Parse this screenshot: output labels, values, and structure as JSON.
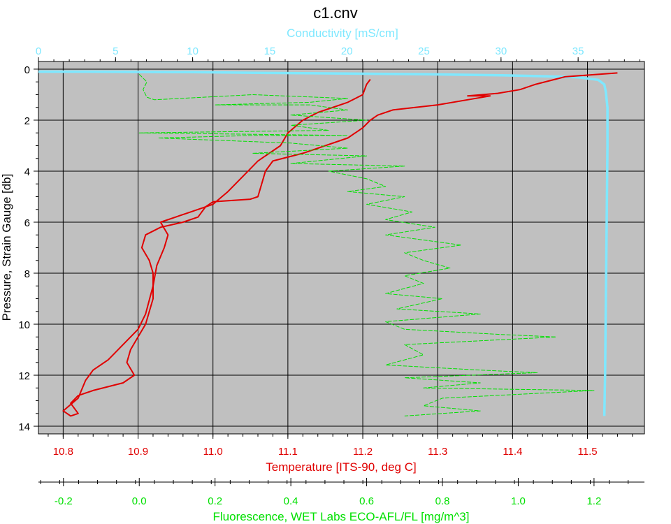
{
  "chart_data": {
    "type": "line",
    "title": "c1.cnv",
    "background_color": "#c0c0c0",
    "grid": true,
    "y_axis": {
      "label": "Pressure, Strain Gauge [db]",
      "range": [
        14.3,
        -0.3
      ],
      "inverted": true,
      "ticks": [
        "0",
        "2",
        "4",
        "6",
        "8",
        "10",
        "12",
        "14"
      ],
      "color": "#000000"
    },
    "axes": {
      "conductivity": {
        "label": "Conductivity [mS/cm]",
        "position": "top",
        "range": [
          0,
          39.3
        ],
        "ticks": [
          "0",
          "5",
          "10",
          "15",
          "20",
          "25",
          "30",
          "35"
        ],
        "color": "#7fe8ff"
      },
      "temperature": {
        "label": "Temperature [ITS-90, deg C]",
        "position": "bottom",
        "range": [
          10.767,
          11.576
        ],
        "ticks": [
          "10.8",
          "10.9",
          "11.0",
          "11.1",
          "11.2",
          "11.3",
          "11.4",
          "11.5"
        ],
        "color": "#e00000"
      },
      "fluorescence": {
        "label": "Fluorescence, WET Labs ECO-AFL/FL [mg/m^3]",
        "position": "bottom",
        "range": [
          -0.266,
          1.333
        ],
        "ticks": [
          "-0.2",
          "0.0",
          "0.2",
          "0.4",
          "0.6",
          "0.8",
          "1.0",
          "1.2"
        ],
        "color": "#00e000"
      }
    },
    "series": [
      {
        "axis": "conductivity",
        "color": "#7fe8ff",
        "points": [
          [
            0,
            0.1
          ],
          [
            3,
            0.1
          ],
          [
            10,
            0.12
          ],
          [
            15,
            0.15
          ],
          [
            20,
            0.17
          ],
          [
            25,
            0.2
          ],
          [
            30,
            0.24
          ],
          [
            33,
            0.28
          ],
          [
            35,
            0.32
          ],
          [
            36.3,
            0.42
          ],
          [
            36.7,
            0.6
          ],
          [
            36.8,
            0.9
          ],
          [
            36.9,
            1.5
          ],
          [
            36.9,
            3
          ],
          [
            36.85,
            6
          ],
          [
            36.8,
            9
          ],
          [
            36.75,
            12
          ],
          [
            36.7,
            13.6
          ]
        ]
      },
      {
        "axis": "temperature",
        "color": "#e00000",
        "points": [
          [
            11.54,
            0.15
          ],
          [
            11.47,
            0.3
          ],
          [
            11.45,
            0.45
          ],
          [
            11.43,
            0.6
          ],
          [
            11.41,
            0.8
          ],
          [
            11.38,
            0.95
          ],
          [
            11.34,
            1.05
          ],
          [
            11.37,
            1.05
          ],
          [
            11.3,
            1.4
          ],
          [
            11.24,
            1.6
          ],
          [
            11.22,
            1.8
          ],
          [
            11.21,
            2
          ],
          [
            11.2,
            2.3
          ],
          [
            11.18,
            2.7
          ],
          [
            11.12,
            3.3
          ],
          [
            11.08,
            3.6
          ],
          [
            11.07,
            4
          ],
          [
            11.065,
            4.5
          ],
          [
            11.06,
            5
          ],
          [
            11.05,
            5.1
          ],
          [
            11.0,
            5.2
          ],
          [
            10.99,
            5.4
          ],
          [
            10.98,
            5.8
          ],
          [
            10.96,
            6
          ],
          [
            10.93,
            6.2
          ],
          [
            10.91,
            6.5
          ],
          [
            10.905,
            7
          ],
          [
            10.915,
            7.5
          ],
          [
            10.92,
            8
          ],
          [
            10.92,
            9
          ],
          [
            10.91,
            10
          ],
          [
            10.9,
            10.5
          ],
          [
            10.89,
            11
          ],
          [
            10.885,
            11.5
          ],
          [
            10.895,
            12
          ],
          [
            10.88,
            12.3
          ],
          [
            10.84,
            12.6
          ],
          [
            10.82,
            12.8
          ],
          [
            10.81,
            13.1
          ],
          [
            10.82,
            13.5
          ],
          [
            10.81,
            13.6
          ],
          [
            10.8,
            13.4
          ],
          [
            10.82,
            12.9
          ],
          [
            10.83,
            12.2
          ],
          [
            10.84,
            11.8
          ],
          [
            10.86,
            11.4
          ],
          [
            10.88,
            10.8
          ],
          [
            10.9,
            10.2
          ],
          [
            10.91,
            9.6
          ],
          [
            10.92,
            8.5
          ],
          [
            10.925,
            7.7
          ],
          [
            10.935,
            7
          ],
          [
            10.94,
            6.5
          ],
          [
            10.93,
            6
          ],
          [
            10.97,
            5.6
          ],
          [
            11.0,
            5.3
          ],
          [
            11.02,
            4.8
          ],
          [
            11.04,
            4.2
          ],
          [
            11.06,
            3.6
          ],
          [
            11.09,
            3
          ],
          [
            11.1,
            2.5
          ],
          [
            11.12,
            2
          ],
          [
            11.14,
            1.7
          ],
          [
            11.18,
            1.3
          ],
          [
            11.2,
            1.0
          ],
          [
            11.205,
            0.6
          ],
          [
            11.21,
            0.4
          ]
        ]
      },
      {
        "axis": "fluorescence",
        "color": "#00e000",
        "points": [
          [
            0.0,
            0.2
          ],
          [
            0.02,
            0.5
          ],
          [
            0.01,
            0.8
          ],
          [
            0.02,
            1.1
          ],
          [
            0.04,
            1.2
          ],
          [
            0.3,
            1.0
          ],
          [
            0.55,
            1.15
          ],
          [
            0.45,
            1.3
          ],
          [
            0.2,
            1.4
          ],
          [
            0.45,
            1.4
          ],
          [
            0.55,
            1.6
          ],
          [
            0.4,
            1.8
          ],
          [
            0.6,
            2
          ],
          [
            0.4,
            2.2
          ],
          [
            0.5,
            2.4
          ],
          [
            0.0,
            2.5
          ],
          [
            0.55,
            2.6
          ],
          [
            0.3,
            2.6
          ],
          [
            0.05,
            2.7
          ],
          [
            0.4,
            2.9
          ],
          [
            0.55,
            3.1
          ],
          [
            0.3,
            3.3
          ],
          [
            0.6,
            3.4
          ],
          [
            0.4,
            3.7
          ],
          [
            0.7,
            3.8
          ],
          [
            0.5,
            4
          ],
          [
            0.6,
            4.3
          ],
          [
            0.65,
            4.6
          ],
          [
            0.55,
            4.8
          ],
          [
            0.7,
            5
          ],
          [
            0.6,
            5.3
          ],
          [
            0.72,
            5.6
          ],
          [
            0.65,
            5.9
          ],
          [
            0.78,
            6.2
          ],
          [
            0.65,
            6.5
          ],
          [
            0.85,
            6.9
          ],
          [
            0.7,
            7.2
          ],
          [
            0.75,
            7.5
          ],
          [
            0.82,
            7.8
          ],
          [
            0.7,
            8.1
          ],
          [
            0.75,
            8.4
          ],
          [
            0.65,
            8.8
          ],
          [
            0.8,
            9
          ],
          [
            0.68,
            9.4
          ],
          [
            0.9,
            9.6
          ],
          [
            0.65,
            9.9
          ],
          [
            0.7,
            10.2
          ],
          [
            0.95,
            10.4
          ],
          [
            1.1,
            10.5
          ],
          [
            0.7,
            10.8
          ],
          [
            0.75,
            11.2
          ],
          [
            0.65,
            11.6
          ],
          [
            0.9,
            11.8
          ],
          [
            1.05,
            11.9
          ],
          [
            0.7,
            12.1
          ],
          [
            0.9,
            12.3
          ],
          [
            0.75,
            12.5
          ],
          [
            1.2,
            12.6
          ],
          [
            0.8,
            12.9
          ],
          [
            0.75,
            13.2
          ],
          [
            0.9,
            13.4
          ],
          [
            0.7,
            13.6
          ]
        ]
      }
    ]
  }
}
